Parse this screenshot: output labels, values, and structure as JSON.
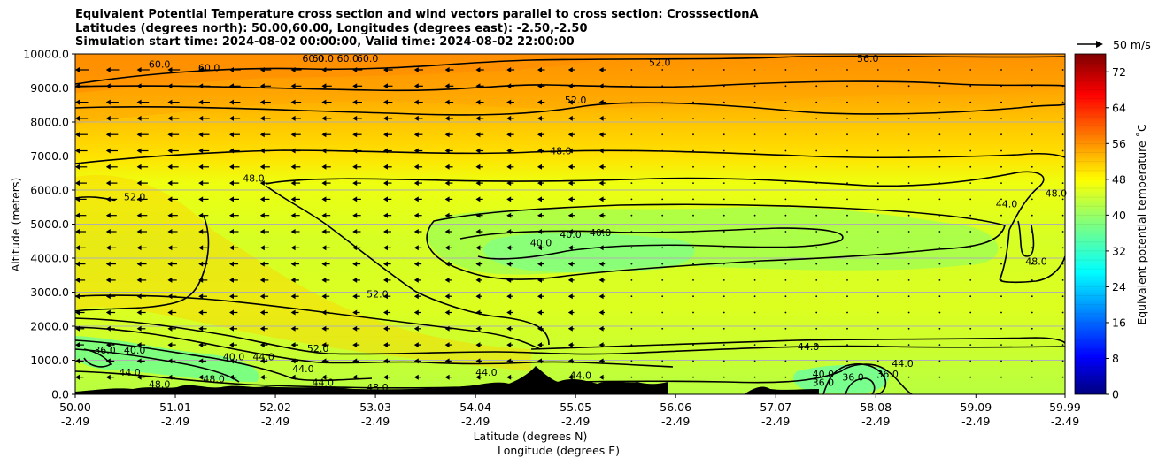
{
  "title_lines": [
    "Equivalent Potential Temperature cross section and wind vectors parallel to cross section: CrosssectionA",
    "Latitudes (degrees north): 50.00,60.00, Longitudes (degrees east): -2.50,-2.50",
    "Simulation start time: 2024-08-02 00:00:00, Valid time: 2024-08-02 22:00:00"
  ],
  "chart_data": {
    "type": "heatmap",
    "subtype": "cross-section contourf with contour lines and wind vectors",
    "xlabel": "Latitude (degrees N)",
    "xlabel2": "Longitude (degrees E)",
    "ylabel": "Altitude (meters)",
    "xlim": [
      50.0,
      59.99
    ],
    "ylim": [
      0,
      10000
    ],
    "x_ticks": [
      {
        "lat": "50.00",
        "lon": "-2.49"
      },
      {
        "lat": "51.01",
        "lon": "-2.49"
      },
      {
        "lat": "52.02",
        "lon": "-2.49"
      },
      {
        "lat": "53.03",
        "lon": "-2.49"
      },
      {
        "lat": "54.04",
        "lon": "-2.49"
      },
      {
        "lat": "55.05",
        "lon": "-2.49"
      },
      {
        "lat": "56.06",
        "lon": "-2.49"
      },
      {
        "lat": "57.07",
        "lon": "-2.49"
      },
      {
        "lat": "58.08",
        "lon": "-2.49"
      },
      {
        "lat": "59.09",
        "lon": "-2.49"
      },
      {
        "lat": "59.99",
        "lon": "-2.49"
      }
    ],
    "y_ticks": [
      "0.0",
      "1000.0",
      "2000.0",
      "3000.0",
      "4000.0",
      "5000.0",
      "6000.0",
      "7000.0",
      "8000.0",
      "9000.0",
      "10000.0"
    ],
    "grid": "horizontal",
    "colorbar": {
      "label": "Equivalent potential temperature $^\\circ$C",
      "label_display": "Equivalent potential temperature ˚C",
      "range": [
        0,
        76
      ],
      "ticks": [
        "0",
        "8",
        "16",
        "24",
        "32",
        "40",
        "48",
        "56",
        "64",
        "72"
      ],
      "colormap": "jet"
    },
    "quiver_key": "50 m/s",
    "contour_labels": [
      {
        "text": "52.0",
        "lat": 55.9,
        "alt": 9650
      },
      {
        "text": "56.0",
        "lat": 58.0,
        "alt": 9950
      },
      {
        "text": "60.0",
        "lat": 50.85,
        "alt": 9600
      },
      {
        "text": "60.0",
        "lat": 51.35,
        "alt": 9500
      },
      {
        "text": "60.0",
        "lat": 52.5,
        "alt": 10000
      },
      {
        "text": "60.0",
        "lat": 52.75,
        "alt": 10000
      },
      {
        "text": "60.0",
        "lat": 52.95,
        "alt": 10000
      },
      {
        "text": "60.0",
        "lat": 52.4,
        "alt": 9950
      },
      {
        "text": "52.0",
        "lat": 55.05,
        "alt": 8550
      },
      {
        "text": "48.0",
        "lat": 54.9,
        "alt": 7050
      },
      {
        "text": "48.0",
        "lat": 51.8,
        "alt": 6250
      },
      {
        "text": "52.0",
        "lat": 50.6,
        "alt": 5700
      },
      {
        "text": "44.0",
        "lat": 59.4,
        "alt": 5500
      },
      {
        "text": "48.0",
        "lat": 59.9,
        "alt": 5800
      },
      {
        "text": "40.0",
        "lat": 54.7,
        "alt": 4350
      },
      {
        "text": "40.0",
        "lat": 55.0,
        "alt": 4600
      },
      {
        "text": "40.0",
        "lat": 55.3,
        "alt": 4650
      },
      {
        "text": "48.0",
        "lat": 59.7,
        "alt": 3800
      },
      {
        "text": "52.0",
        "lat": 53.05,
        "alt": 2850
      },
      {
        "text": "52.0",
        "lat": 52.45,
        "alt": 1250
      },
      {
        "text": "36.0",
        "lat": 50.3,
        "alt": 1200
      },
      {
        "text": "40.0",
        "lat": 50.6,
        "alt": 1200
      },
      {
        "text": "44.0",
        "lat": 50.55,
        "alt": 550
      },
      {
        "text": "48.0",
        "lat": 50.85,
        "alt": 200
      },
      {
        "text": "48.0",
        "lat": 51.4,
        "alt": 350
      },
      {
        "text": "40.0",
        "lat": 51.6,
        "alt": 1000
      },
      {
        "text": "44.0",
        "lat": 51.9,
        "alt": 1000
      },
      {
        "text": "44.0",
        "lat": 52.3,
        "alt": 650
      },
      {
        "text": "44.0",
        "lat": 52.5,
        "alt": 250
      },
      {
        "text": "48.0",
        "lat": 53.05,
        "alt": 80
      },
      {
        "text": "44.0",
        "lat": 54.15,
        "alt": 550
      },
      {
        "text": "44.0",
        "lat": 55.1,
        "alt": 450
      },
      {
        "text": "44.0",
        "lat": 57.4,
        "alt": 1300
      },
      {
        "text": "40.0",
        "lat": 57.55,
        "alt": 500
      },
      {
        "text": "36.0",
        "lat": 57.55,
        "alt": 250
      },
      {
        "text": "36.0",
        "lat": 57.85,
        "alt": 400
      },
      {
        "text": "36.0",
        "lat": 58.2,
        "alt": 500
      },
      {
        "text": "44.0",
        "lat": 58.35,
        "alt": 800
      }
    ]
  }
}
